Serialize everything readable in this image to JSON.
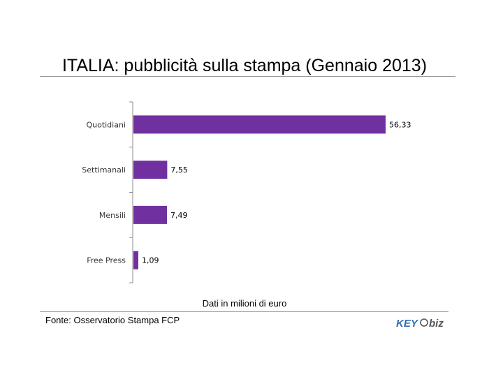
{
  "chart_data": {
    "type": "bar",
    "orientation": "horizontal",
    "title": "ITALIA: pubblicità sulla stampa (Gennaio 2013)",
    "xlabel": "Dati in milioni di euro",
    "categories": [
      "Quotidiani",
      "Settimanali",
      "Mensili",
      "Free Press"
    ],
    "values": [
      56.33,
      7.55,
      7.49,
      1.09
    ],
    "value_labels": [
      "56,33",
      "7,55",
      "7,49",
      "1,09"
    ],
    "bar_color": "#7030a0",
    "grid": false,
    "legend": "none"
  },
  "footer": {
    "source": "Fonte: Osservatorio Stampa FCP",
    "logo_text_left": "KEY",
    "logo_text_right": "biz",
    "logo_color_left": "#2f6fb5",
    "logo_color_right": "#555555"
  }
}
